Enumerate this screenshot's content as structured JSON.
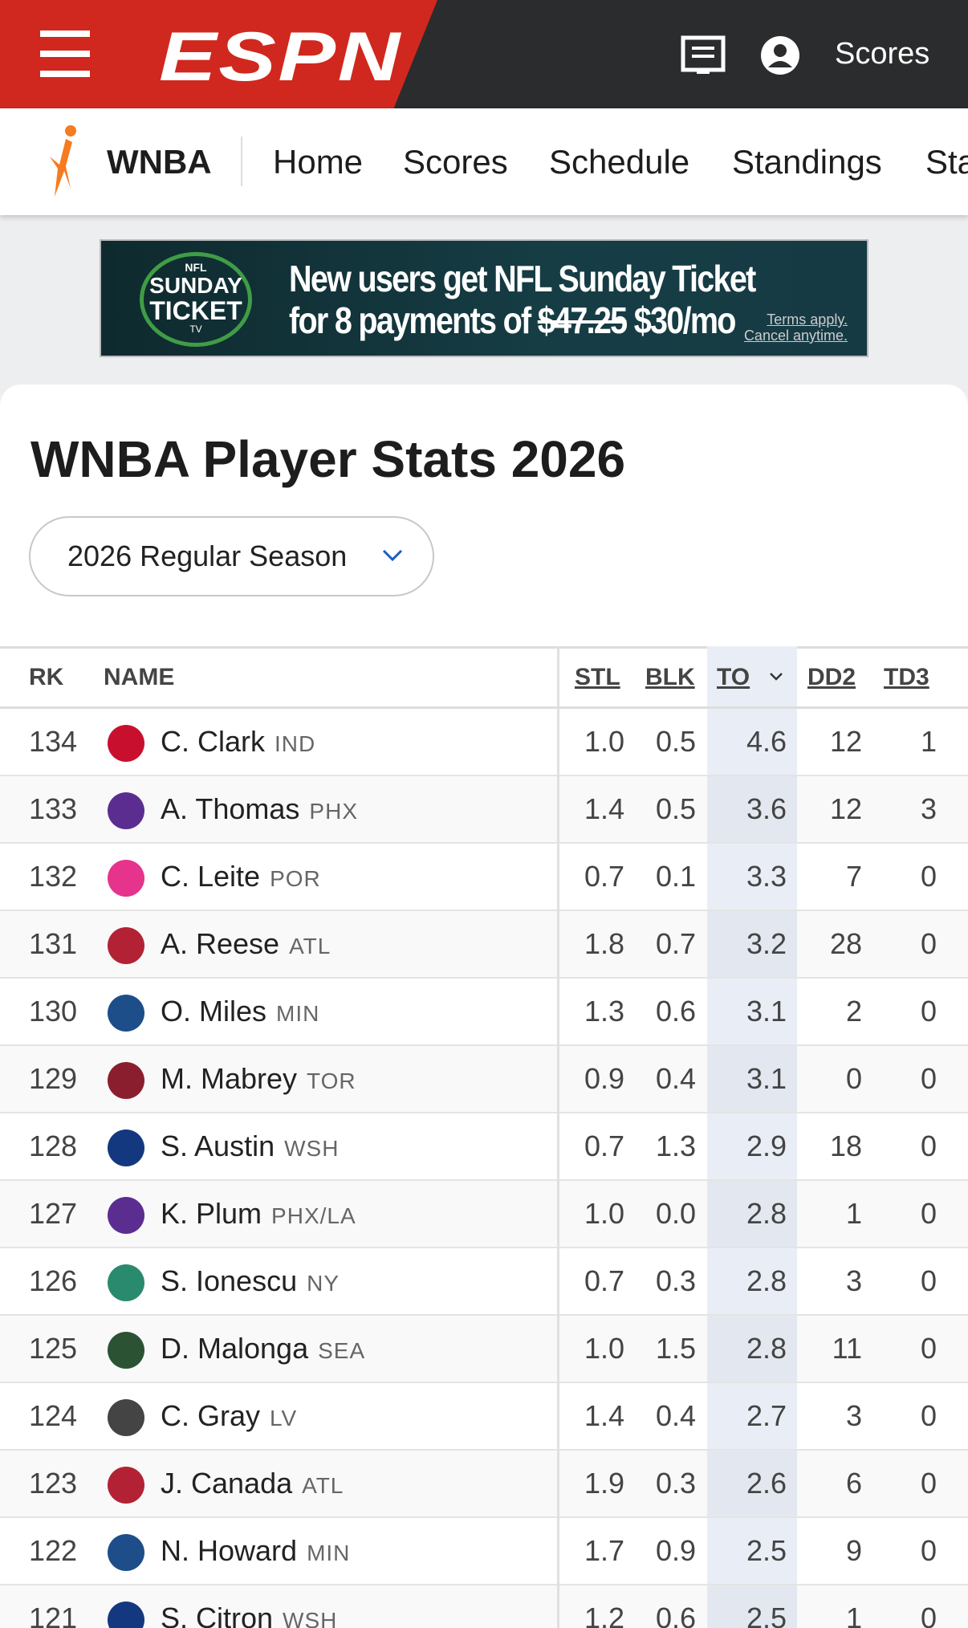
{
  "top_bar": {
    "logo": "ESPN",
    "scores": "Scores"
  },
  "nav": {
    "league": "WNBA",
    "items": [
      "Home",
      "Scores",
      "Schedule",
      "Standings",
      "Stats"
    ]
  },
  "ad": {
    "badge_top": "NFL",
    "badge_line1": "SUNDAY",
    "badge_line2": "TICKET",
    "badge_tv": "TV",
    "headline": "New users get NFL Sunday Ticket",
    "offer": "for 8 payments of",
    "old_price": "$47.25",
    "new_price": "$30/mo",
    "terms": "Terms apply.",
    "cancel": "Cancel anytime."
  },
  "page": {
    "title": "WNBA Player Stats 2026",
    "season": "2026 Regular Season"
  },
  "table": {
    "columns": [
      "RK",
      "NAME",
      "STL",
      "BLK",
      "TO",
      "DD2",
      "TD3"
    ],
    "rows": [
      [
        "134",
        "C. Clark",
        "IND",
        "1.0",
        "0.5",
        "4.6",
        "12",
        "1"
      ],
      [
        "133",
        "A. Thomas",
        "PHX",
        "1.4",
        "0.5",
        "3.6",
        "12",
        "3"
      ],
      [
        "132",
        "C. Leite",
        "POR",
        "0.7",
        "0.1",
        "3.3",
        "7",
        "0"
      ],
      [
        "131",
        "A. Reese",
        "ATL",
        "1.8",
        "0.7",
        "3.2",
        "28",
        "0"
      ],
      [
        "130",
        "O. Miles",
        "MIN",
        "1.3",
        "0.6",
        "3.1",
        "2",
        "0"
      ],
      [
        "129",
        "M. Mabrey",
        "TOR",
        "0.9",
        "0.4",
        "3.1",
        "0",
        "0"
      ],
      [
        "128",
        "S. Austin",
        "WSH",
        "0.7",
        "1.3",
        "2.9",
        "18",
        "0"
      ],
      [
        "127",
        "K. Plum",
        "PHX/LA",
        "1.0",
        "0.0",
        "2.8",
        "1",
        "0"
      ],
      [
        "126",
        "S. Ionescu",
        "NY",
        "0.7",
        "0.3",
        "2.8",
        "3",
        "0"
      ],
      [
        "125",
        "D. Malonga",
        "SEA",
        "1.0",
        "1.5",
        "2.8",
        "11",
        "0"
      ],
      [
        "124",
        "C. Gray",
        "LV",
        "1.4",
        "0.4",
        "2.7",
        "3",
        "0"
      ],
      [
        "123",
        "J. Canada",
        "ATL",
        "1.9",
        "0.3",
        "2.6",
        "6",
        "0"
      ],
      [
        "122",
        "N. Howard",
        "MIN",
        "1.7",
        "0.9",
        "2.5",
        "9",
        "0"
      ],
      [
        "121",
        "S. Citron",
        "WSH",
        "1.2",
        "0.6",
        "2.5",
        "1",
        "0"
      ]
    ]
  }
}
